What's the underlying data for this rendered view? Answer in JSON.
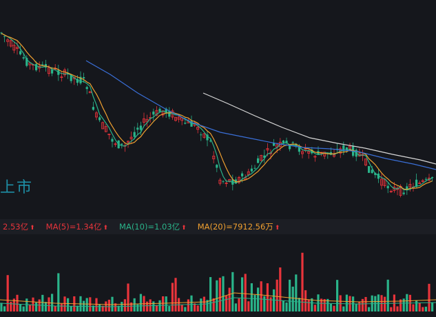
{
  "watermark": "上市",
  "info_bar": {
    "items": [
      {
        "label": "2.53亿",
        "color": "#e8343b",
        "arrow": "⬆"
      },
      {
        "label": "MA(5)=1.34亿",
        "color": "#e8343b",
        "arrow": "⬆"
      },
      {
        "label": "MA(10)=1.03亿",
        "color": "#2ab48a",
        "arrow": "⬆"
      },
      {
        "label": "MA(20)=7912.56万",
        "color": "#f0a030",
        "arrow": "⬆"
      }
    ]
  },
  "colors": {
    "up": "#e8343b",
    "down": "#2ab48a",
    "ma5": "#2ab48a",
    "ma10": "#f0a030",
    "ma60": "#3a6fd8",
    "ma120": "#d8d8d8",
    "background": "#15171c"
  }
}
